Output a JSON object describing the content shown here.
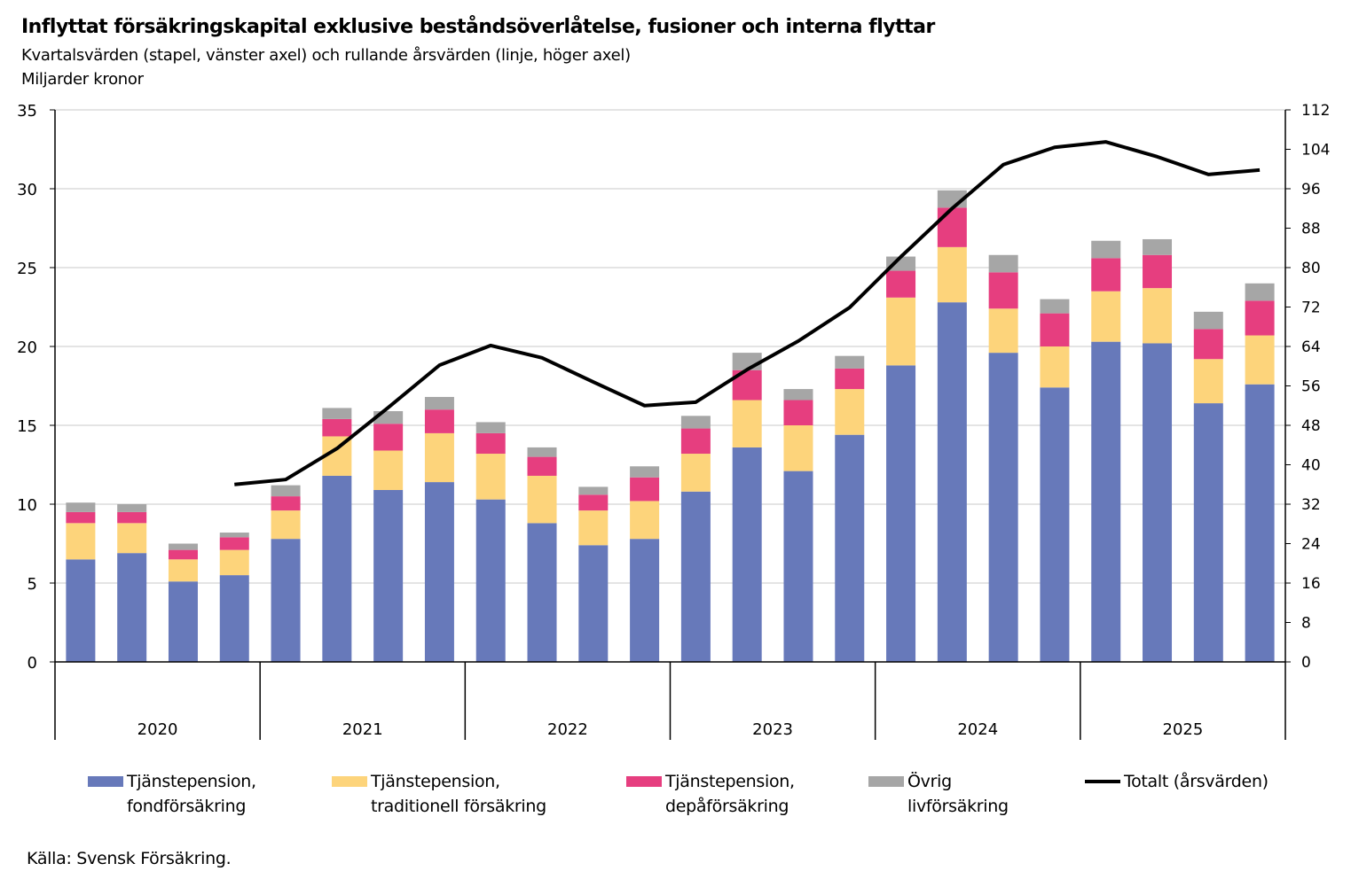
{
  "title": "Inflyttat försäkringskapital exklusive beståndsöverlåtelse, fusioner och interna flyttar",
  "subtitle": "Kvartalsvärden (stapel, vänster axel) och rullande årsvärden (linje, höger axel)",
  "unit": "Miljarder kronor",
  "source": "Källa: Svensk Försäkring.",
  "chart_data": {
    "type": "bar",
    "stacked": true,
    "title": "Inflyttat försäkringskapital exklusive beståndsöverlåtelse, fusioner och interna flyttar",
    "years": [
      "2020",
      "2021",
      "2022",
      "2023",
      "2024",
      "2025"
    ],
    "categories": [
      "2020Q1",
      "2020Q2",
      "2020Q3",
      "2020Q4",
      "2021Q1",
      "2021Q2",
      "2021Q3",
      "2021Q4",
      "2022Q1",
      "2022Q2",
      "2022Q3",
      "2022Q4",
      "2023Q1",
      "2023Q2",
      "2023Q3",
      "2023Q4",
      "2024Q1",
      "2024Q2",
      "2024Q3",
      "2024Q4",
      "2025Q1",
      "2025Q2",
      "2025Q3",
      "2025Q4"
    ],
    "ylim": [
      0,
      35
    ],
    "yticks": [
      0,
      5,
      10,
      15,
      20,
      25,
      30,
      35
    ],
    "y2lim": [
      0,
      112
    ],
    "y2ticks": [
      0,
      8,
      16,
      24,
      32,
      40,
      48,
      56,
      64,
      72,
      80,
      88,
      96,
      104,
      112
    ],
    "grid": true,
    "legend": "bottom",
    "series": [
      {
        "name": "Tjänstepension, fondförsäkring",
        "label1": "Tjänstepension,",
        "label2": "fondförsäkring",
        "color": "#6779BA",
        "values": [
          6.5,
          6.9,
          5.1,
          5.5,
          7.8,
          11.8,
          10.9,
          11.4,
          10.3,
          8.8,
          7.4,
          7.8,
          10.8,
          13.6,
          12.1,
          14.4,
          18.8,
          22.8,
          19.6,
          17.4,
          20.3,
          20.2,
          16.4,
          17.6
        ]
      },
      {
        "name": "Tjänstepension, traditionell försäkring",
        "label1": "Tjänstepension,",
        "label2": "traditionell försäkring",
        "color": "#FDD47B",
        "values": [
          2.3,
          1.9,
          1.4,
          1.6,
          1.8,
          2.5,
          2.5,
          3.1,
          2.9,
          3.0,
          2.2,
          2.4,
          2.4,
          3.0,
          2.9,
          2.9,
          4.3,
          3.5,
          2.8,
          2.6,
          3.2,
          3.5,
          2.8,
          3.1
        ]
      },
      {
        "name": "Tjänstepension, depåförsäkring",
        "label1": "Tjänstepension,",
        "label2": "depåförsäkring",
        "color": "#E63E7F",
        "values": [
          0.7,
          0.7,
          0.6,
          0.8,
          0.9,
          1.1,
          1.7,
          1.5,
          1.3,
          1.2,
          1.0,
          1.5,
          1.6,
          1.9,
          1.6,
          1.3,
          1.7,
          2.5,
          2.3,
          2.1,
          2.1,
          2.1,
          1.9,
          2.2
        ]
      },
      {
        "name": "Övrig livförsäkring",
        "label1": "Övrig",
        "label2": "livförsäkring",
        "color": "#A6A6A6",
        "values": [
          0.6,
          0.5,
          0.4,
          0.3,
          0.7,
          0.7,
          0.8,
          0.8,
          0.7,
          0.6,
          0.5,
          0.7,
          0.8,
          1.1,
          0.7,
          0.8,
          0.9,
          1.1,
          1.1,
          0.9,
          1.1,
          1.0,
          1.1,
          1.1
        ]
      }
    ],
    "line": {
      "name": "Totalt (årsvärden)",
      "color": "#000000",
      "axis": "right",
      "values": [
        null,
        null,
        null,
        36.0,
        37.0,
        43.3,
        51.6,
        60.2,
        64.2,
        61.7,
        56.8,
        52.0,
        52.7,
        59.3,
        65.1,
        71.9,
        82.2,
        92.0,
        100.9,
        104.4,
        105.5,
        102.5,
        98.9,
        99.8
      ]
    }
  }
}
